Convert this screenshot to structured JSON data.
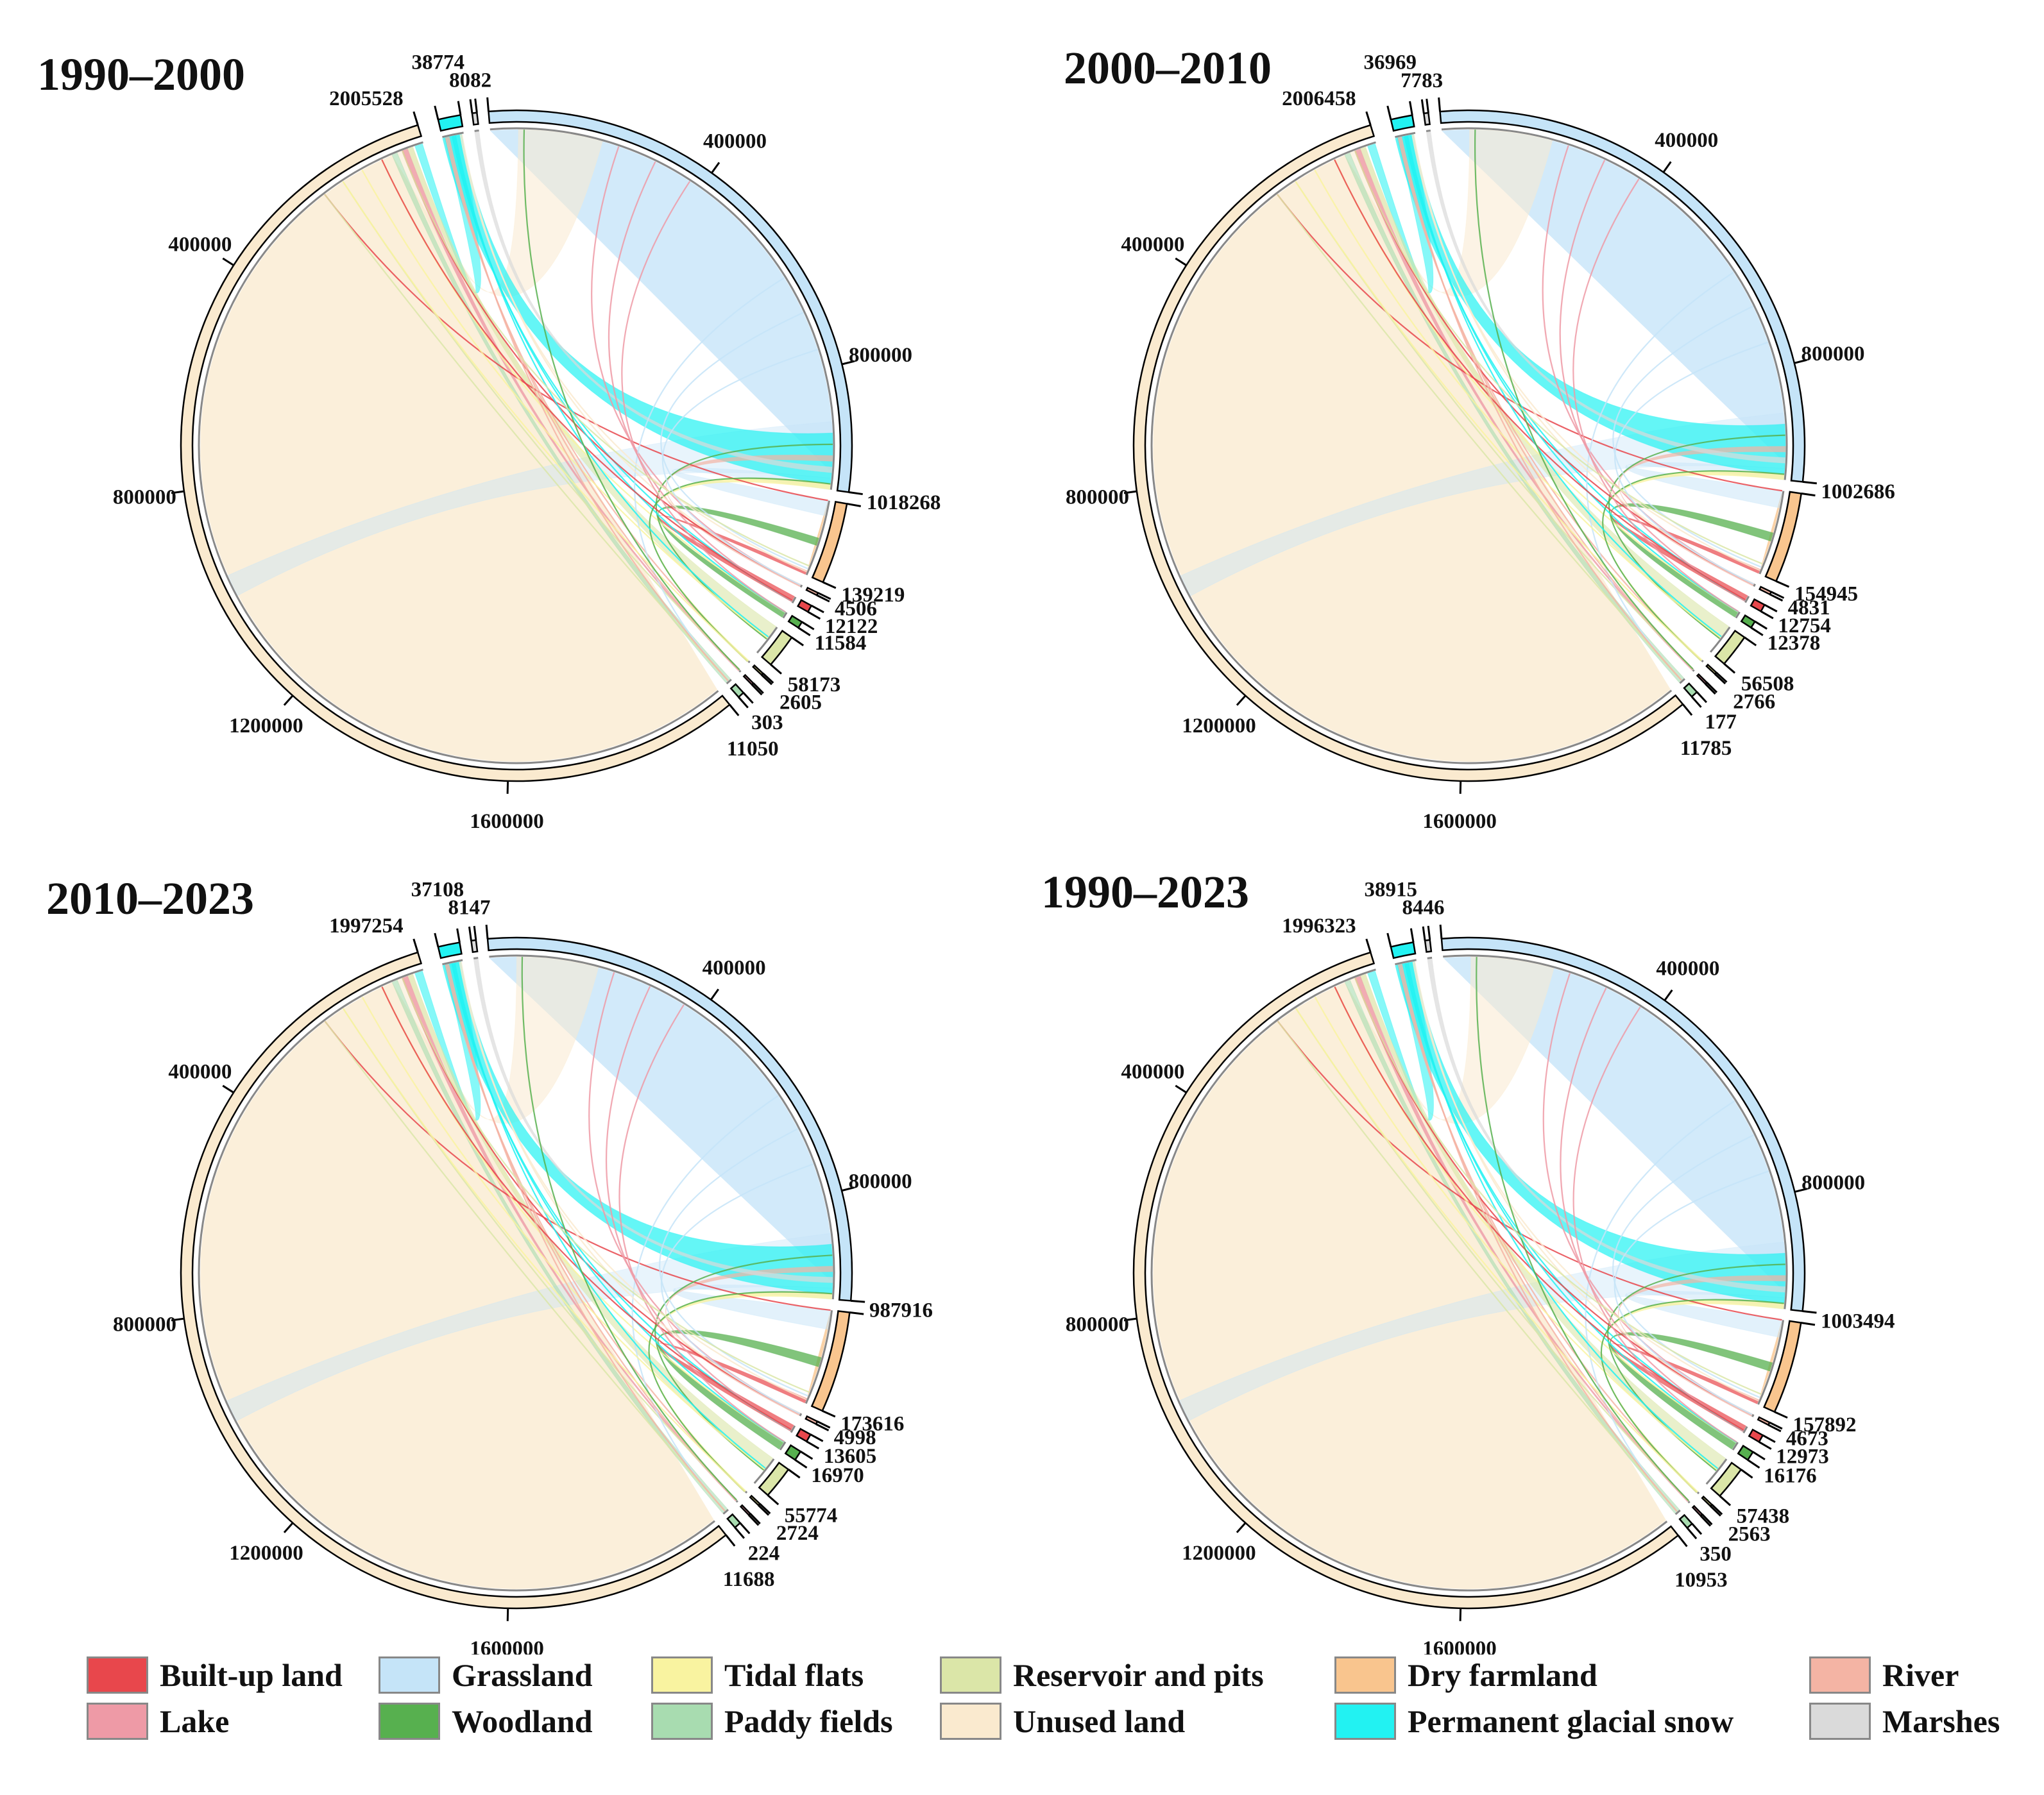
{
  "chart_data": [
    {
      "type": "chord",
      "title": "1990–2000",
      "sector_totals": {
        "Unused land": 2005528,
        "Permanent glacial snow": 38774,
        "Marshes": 8082,
        "Grassland": 1018268,
        "Dry farmland": 139219,
        "River": 4506,
        "Built-up land": 12122,
        "Woodland": 11584,
        "Reservoir and pits": 58173,
        "Tidal flats": 2605,
        "Lake": 303,
        "Paddy fields": 11050
      },
      "value_labels": [
        "2005528",
        "38774",
        "8082",
        "1018268",
        "139219",
        "4506",
        "12122",
        "11584",
        "58173",
        "2605",
        "303",
        "11050"
      ],
      "tick_labels": [
        "400000",
        "800000",
        "1600000",
        "1200000",
        "800000",
        "400000"
      ]
    },
    {
      "type": "chord",
      "title": "2000–2010",
      "sector_totals": {
        "Unused land": 2006458,
        "Permanent glacial snow": 36969,
        "Marshes": 7783,
        "Grassland": 1002686,
        "Dry farmland": 154945,
        "River": 4831,
        "Built-up land": 12754,
        "Woodland": 12378,
        "Reservoir and pits": 56508,
        "Tidal flats": 2766,
        "Lake": 177,
        "Paddy fields": 11785
      },
      "value_labels": [
        "2006458",
        "36969",
        "7783",
        "1002686",
        "154945",
        "4831",
        "12754",
        "12378",
        "56508",
        "2766",
        "177",
        "11785"
      ],
      "tick_labels": [
        "400000",
        "800000",
        "1600000",
        "1200000",
        "800000",
        "400000"
      ]
    },
    {
      "type": "chord",
      "title": "2010–2023",
      "sector_totals": {
        "Unused land": 1997254,
        "Permanent glacial snow": 37108,
        "Marshes": 8147,
        "Grassland": 987916,
        "Dry farmland": 173616,
        "River": 4998,
        "Built-up land": 13605,
        "Woodland": 16970,
        "Reservoir and pits": 55774,
        "Tidal flats": 2724,
        "Lake": 224,
        "Paddy fields": 11688
      },
      "value_labels": [
        "1997254",
        "37108",
        "8147",
        "987916",
        "173616",
        "4998",
        "13605",
        "16970",
        "55774",
        "2724",
        "224",
        "11688"
      ],
      "tick_labels": [
        "400000",
        "800000",
        "1600000",
        "1200000",
        "800000",
        "400000"
      ]
    },
    {
      "type": "chord",
      "title": "1990–2023",
      "sector_totals": {
        "Unused land": 1996323,
        "Permanent glacial snow": 38915,
        "Marshes": 8446,
        "Grassland": 1003494,
        "Dry farmland": 157892,
        "River": 4673,
        "Built-up land": 12973,
        "Woodland": 16176,
        "Reservoir and pits": 57438,
        "Tidal flats": 2563,
        "Lake": 350,
        "Paddy fields": 10953
      },
      "value_labels": [
        "1996323",
        "38915",
        "8446",
        "1003494",
        "157892",
        "4673",
        "12973",
        "16176",
        "57438",
        "2563",
        "350",
        "10953"
      ],
      "tick_labels": [
        "400000",
        "800000",
        "1600000",
        "1200000",
        "800000",
        "400000"
      ]
    }
  ],
  "legend": [
    {
      "label": "Built-up land",
      "color": "#e8474c"
    },
    {
      "label": "Grassland",
      "color": "#c5e4f8"
    },
    {
      "label": "Tidal flats",
      "color": "#f9f3a0"
    },
    {
      "label": "Reservoir and pits",
      "color": "#dbe6a8"
    },
    {
      "label": "Dry farmland",
      "color": "#f9c58e"
    },
    {
      "label": "River",
      "color": "#f4b4a4"
    },
    {
      "label": "Lake",
      "color": "#ee9aa6"
    },
    {
      "label": "Woodland",
      "color": "#57b04f"
    },
    {
      "label": "Paddy fields",
      "color": "#a8dcb0"
    },
    {
      "label": "Unused land",
      "color": "#faeacf"
    },
    {
      "label": "Permanent glacial snow",
      "color": "#22f2f2"
    },
    {
      "label": "Marshes",
      "color": "#dadada"
    }
  ]
}
